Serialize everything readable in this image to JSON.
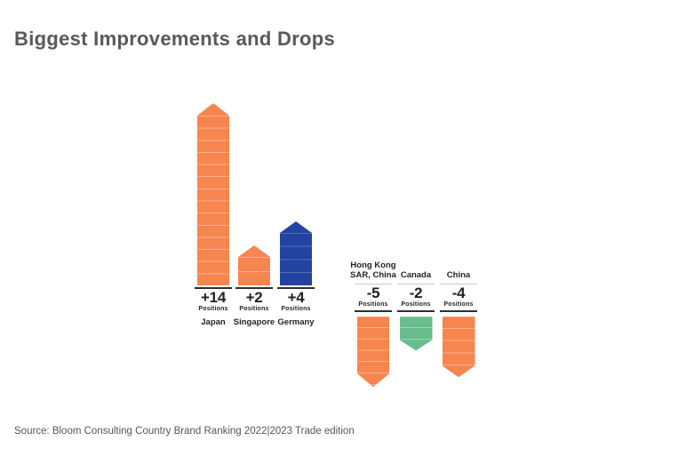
{
  "title": "Biggest Improvements and Drops",
  "source": "Source: Bloom Consulting Country Brand Ranking 2022|2023 Trade edition",
  "labels": {
    "positions": "Positions"
  },
  "colors": {
    "improvement_orange": "#F6854F",
    "improvement_blue": "#2343A0",
    "drop_green": "#68BC8E",
    "title_gray": "#58595B",
    "ink": "#231F20"
  },
  "improvements": [
    {
      "country": "Japan",
      "value": "+14"
    },
    {
      "country": "Singapore",
      "value": "+2"
    },
    {
      "country": "Germany",
      "value": "+4"
    }
  ],
  "drops": [
    {
      "country": "Hong Kong SAR, China",
      "value": "-5"
    },
    {
      "country": "Canada",
      "value": "-2"
    },
    {
      "country": "China",
      "value": "-4"
    }
  ],
  "chart_data": {
    "type": "bar",
    "title": "Biggest Improvements and Drops",
    "categories": [
      "Japan",
      "Singapore",
      "Germany",
      "Hong Kong SAR, China",
      "Canada",
      "China"
    ],
    "values": [
      14,
      2,
      4,
      -5,
      -2,
      -4
    ],
    "unit": "positions (ranking change)",
    "groups": [
      "improvement",
      "improvement",
      "improvement",
      "drop",
      "drop",
      "drop"
    ],
    "bar_colors": [
      "#F6854F",
      "#F6854F",
      "#2343A0",
      "#F6854F",
      "#68BC8E",
      "#F6854F"
    ],
    "legend": "none",
    "axes": "none",
    "source": "Source: Bloom Consulting Country Brand Ranking 2022|2023 Trade edition"
  }
}
